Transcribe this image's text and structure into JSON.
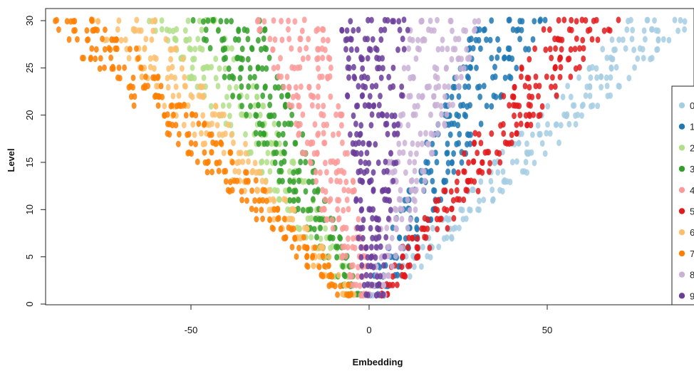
{
  "chart_data": {
    "type": "scatter",
    "title": "",
    "xlabel": "Embedding",
    "ylabel": "Level",
    "xlim": [
      -90,
      90
    ],
    "ylim": [
      0,
      30
    ],
    "x_ticks": [
      {
        "value": -50,
        "label": "-50"
      },
      {
        "value": 0,
        "label": "0"
      },
      {
        "value": 50,
        "label": "50"
      }
    ],
    "y_ticks": [
      {
        "value": 0,
        "label": "0"
      },
      {
        "value": 5,
        "label": "5"
      },
      {
        "value": 10,
        "label": "10"
      },
      {
        "value": 15,
        "label": "15"
      },
      {
        "value": 20,
        "label": "20"
      },
      {
        "value": 25,
        "label": "25"
      },
      {
        "value": 30,
        "label": "30"
      }
    ],
    "grid": false,
    "legend": {
      "placement": "right",
      "entries": [
        "0",
        "1",
        "2",
        "3",
        "4",
        "5",
        "6",
        "7",
        "8",
        "9"
      ]
    },
    "levels": {
      "min": 1,
      "max": 30
    },
    "series": [
      {
        "name": "0",
        "color": "#a6cee3",
        "center_at_level_1": 3,
        "center_at_level_30": 82
      },
      {
        "name": "1",
        "color": "#1f78b4",
        "center_at_level_1": 2,
        "center_at_level_30": 40
      },
      {
        "name": "2",
        "color": "#b2df8a",
        "center_at_level_1": -4,
        "center_at_level_30": -52
      },
      {
        "name": "3",
        "color": "#33a02c",
        "center_at_level_1": -5,
        "center_at_level_30": -40
      },
      {
        "name": "4",
        "color": "#fb9a99",
        "center_at_level_1": -2,
        "center_at_level_30": -22
      },
      {
        "name": "5",
        "color": "#e31a1c",
        "center_at_level_1": 4,
        "center_at_level_30": 60
      },
      {
        "name": "6",
        "color": "#fdbf6f",
        "center_at_level_1": -6,
        "center_at_level_30": -70
      },
      {
        "name": "7",
        "color": "#ff7f00",
        "center_at_level_1": -6,
        "center_at_level_30": -82
      },
      {
        "name": "8",
        "color": "#cab2d6",
        "center_at_level_1": 2,
        "center_at_level_30": 22
      },
      {
        "name": "9",
        "color": "#6a3d9a",
        "center_at_level_1": 1,
        "center_at_level_30": 2
      }
    ]
  }
}
